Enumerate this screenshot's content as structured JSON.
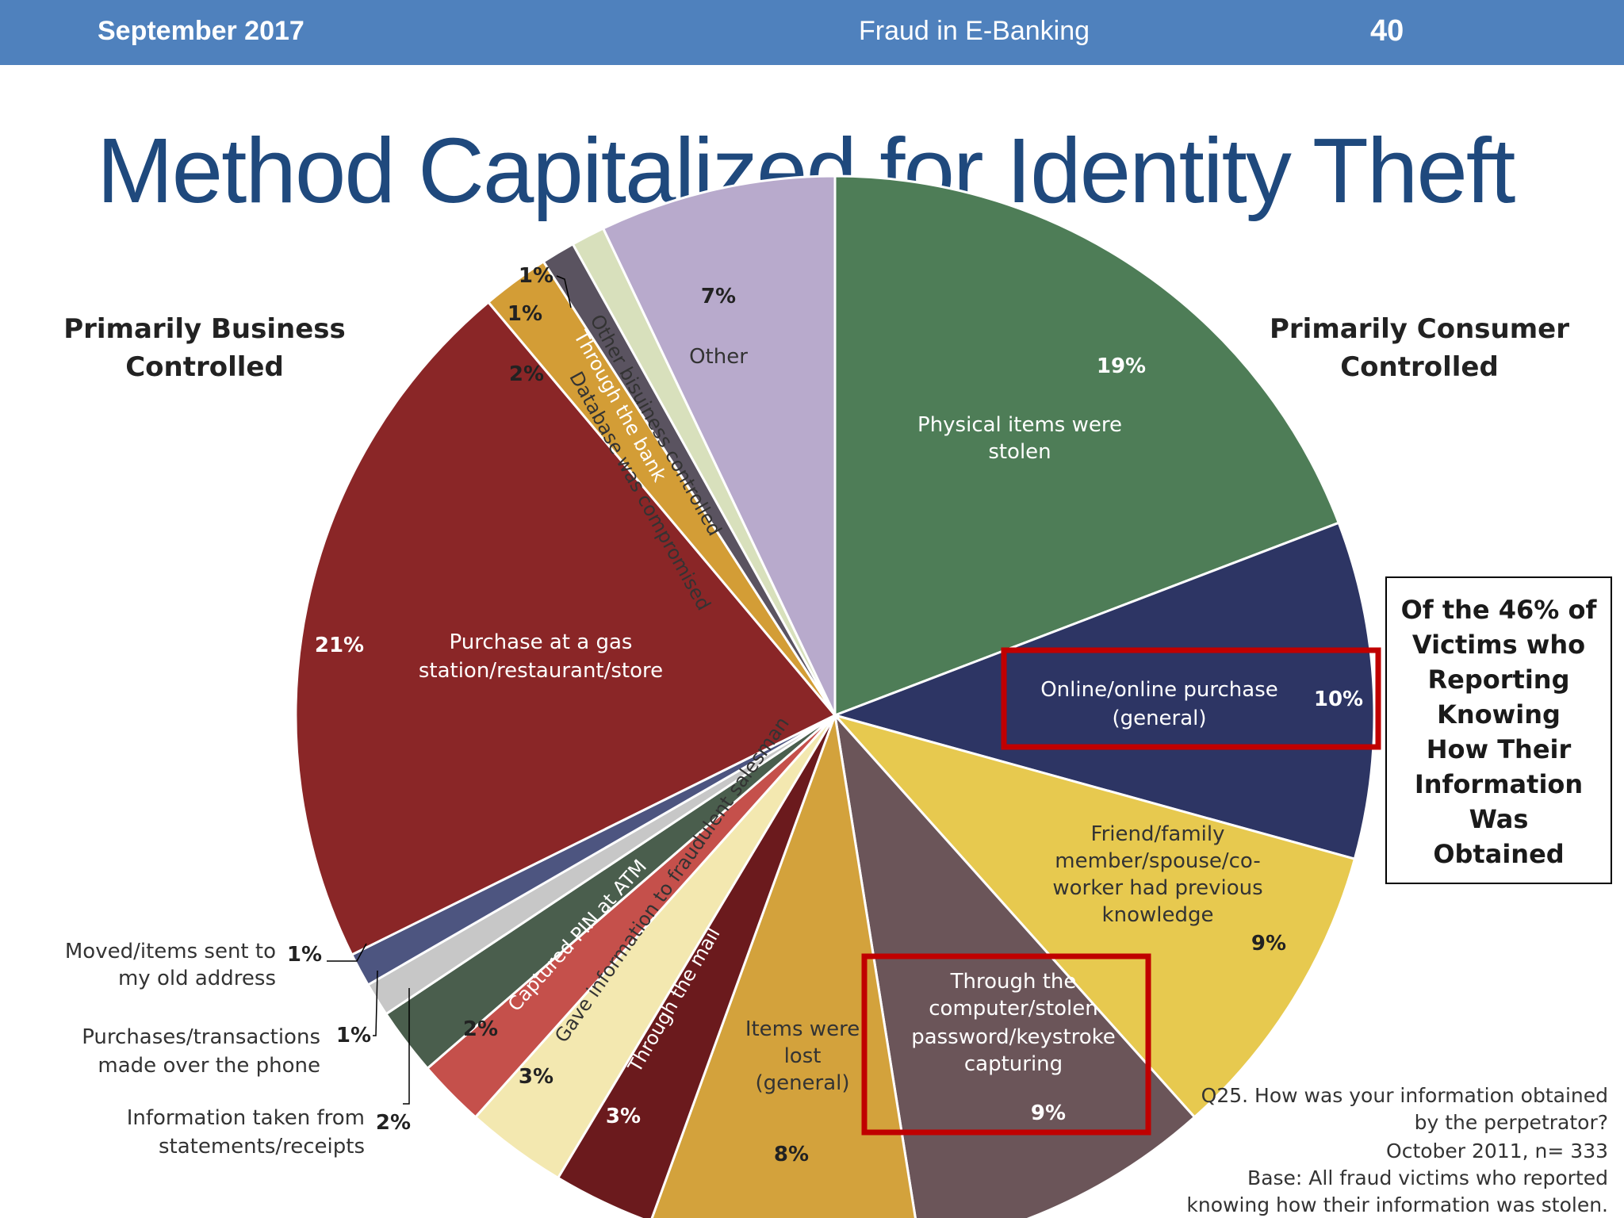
{
  "header": {
    "date": "September 2017",
    "title": "Fraud in E-Banking",
    "page": "40"
  },
  "slide_title": "Method Capitalized for Identity Theft",
  "colors": {
    "header_bar": "#4f81bd",
    "title": "#1f497d",
    "highlight": "#c00000"
  },
  "chart_data": {
    "type": "pie",
    "start": "12 o'clock",
    "direction": "clockwise",
    "slices": [
      {
        "label": "Physical items were stolen",
        "value": 19,
        "value_label": "19%",
        "color": "#4e7d57",
        "group": "consumer"
      },
      {
        "label": "Online/online purchase (general)",
        "value": 10,
        "value_label": "10%",
        "color": "#2d3564",
        "group": "consumer",
        "highlighted": true
      },
      {
        "label": "Friend/family member/spouse/co-worker had previous knowledge",
        "value": 9,
        "value_label": "9%",
        "color": "#e7c94f",
        "group": "consumer"
      },
      {
        "label": "Through the computer/stolen password/keystroke capturing",
        "value": 9,
        "value_label": "9%",
        "color": "#6b5559",
        "group": "consumer",
        "highlighted": true
      },
      {
        "label": "Items were lost (general)",
        "value": 8,
        "value_label": "8%",
        "color": "#d3a23c",
        "group": "consumer"
      },
      {
        "label": "Through the mail",
        "value": 3,
        "value_label": "3%",
        "color": "#6b1a1d",
        "group": "business"
      },
      {
        "label": "Gave information to fraudulent salesman",
        "value": 3,
        "value_label": "3%",
        "color": "#f3e8b0",
        "group": "business"
      },
      {
        "label": "Captured PIN at ATM",
        "value": 2,
        "value_label": "2%",
        "color": "#c5504b",
        "group": "business"
      },
      {
        "label": "Information taken from statements/receipts",
        "value": 2,
        "value_label": "2%",
        "color": "#4a5e4d",
        "group": "business"
      },
      {
        "label": "Purchases/transactions made over the phone",
        "value": 1,
        "value_label": "1%",
        "color": "#c7c7c7",
        "group": "business"
      },
      {
        "label": "Moved/items sent to my old address",
        "value": 1,
        "value_label": "1%",
        "color": "#4d5580",
        "group": "business"
      },
      {
        "label": "Purchase at a gas station/restaurant/store",
        "value": 21,
        "value_label": "21%",
        "color": "#8a2627",
        "group": "business"
      },
      {
        "label": "Database was compromised",
        "value": 2,
        "value_label": "2%",
        "color": "#d39d36",
        "group": "business"
      },
      {
        "label": "Through the bank",
        "value": 1,
        "value_label": "1%",
        "color": "#5a5360",
        "group": "business"
      },
      {
        "label": "Other bisuiness controlled",
        "value": 1,
        "value_label": "1%",
        "color": "#d8e0bc",
        "group": "business"
      },
      {
        "label": "Other",
        "value": 7,
        "value_label": "7%",
        "color": "#b8aacc",
        "group": "other"
      }
    ],
    "display": {
      "physical_line1": "Physical items were",
      "physical_line2": "stolen",
      "online_line1": "Online/online purchase",
      "online_line2": "(general)",
      "friend_line1": "Friend/family",
      "friend_line2": "member/spouse/co-",
      "friend_line3": "worker had previous",
      "friend_line4": "knowledge",
      "computer_line1": "Through the",
      "computer_line2": "computer/stolen",
      "computer_line3": "password/keystroke",
      "computer_line4": "capturing",
      "lost_line1": "Items were",
      "lost_line2": "lost",
      "lost_line3": "(general)",
      "purchase_line1": "Purchase at a gas",
      "purchase_line2": "station/restaurant/store",
      "moved_line1": "Moved/items sent to",
      "moved_line2": "my old address",
      "phone_line1": "Purchases/transactions",
      "phone_line2": "made over the phone",
      "statements_line1": "Information taken from",
      "statements_line2": "statements/receipts"
    },
    "group_labels": {
      "business_line1": "Primarily Business",
      "business_line2": "Controlled",
      "consumer_line1": "Primarily Consumer",
      "consumer_line2": "Controlled"
    },
    "callout_box": [
      "Of the 46% of",
      "Victims who",
      "Reporting",
      "Knowing",
      "How Their",
      "Information",
      "Was",
      "Obtained"
    ],
    "footnote": [
      "Q25. How was your information obtained",
      "by the perpetrator?",
      "October 2011,  n=  333",
      "Base: All fraud victims who reported",
      "knowing how their information was stolen."
    ]
  }
}
